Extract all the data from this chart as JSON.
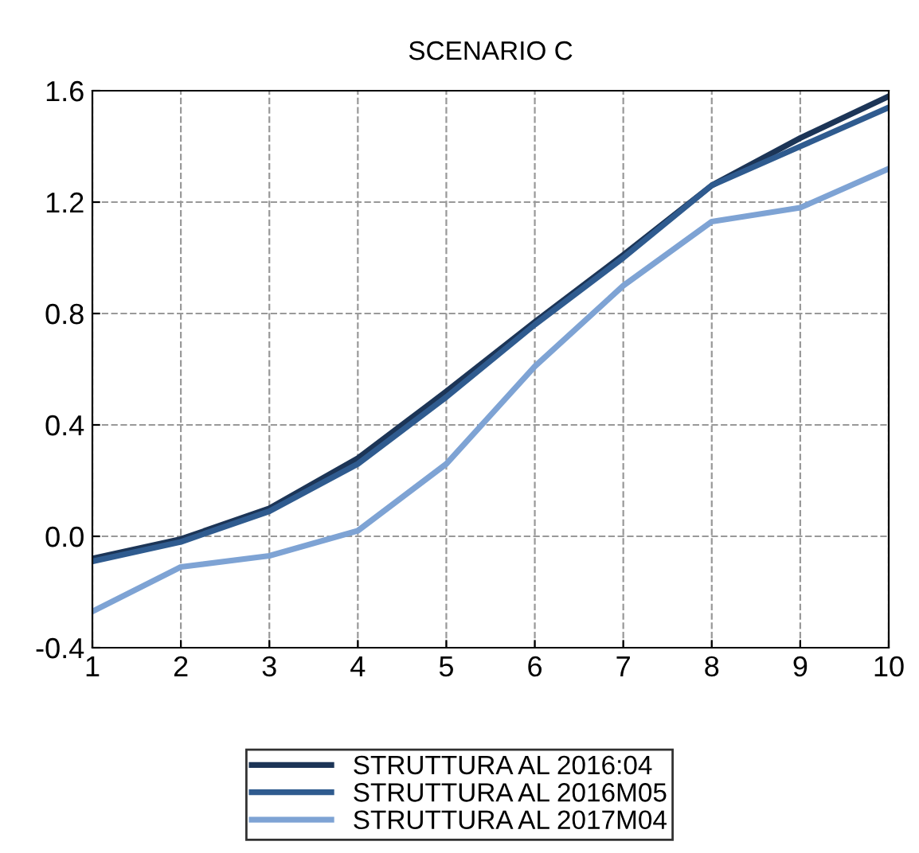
{
  "chart_data": {
    "type": "line",
    "title": "SCENARIO C",
    "x": [
      1,
      2,
      3,
      4,
      5,
      6,
      7,
      8,
      9,
      10
    ],
    "series": [
      {
        "name": "STRUTTURA AL 2016:04",
        "color": "#1c3557",
        "values": [
          -0.08,
          -0.01,
          0.1,
          0.28,
          0.52,
          0.77,
          1.01,
          1.26,
          1.43,
          1.58
        ]
      },
      {
        "name": "STRUTTURA AL 2016M05",
        "color": "#2f5b8f",
        "values": [
          -0.09,
          -0.02,
          0.09,
          0.26,
          0.5,
          0.76,
          1.0,
          1.26,
          1.4,
          1.54
        ]
      },
      {
        "name": "STRUTTURA AL 2017M04",
        "color": "#7ea3d4",
        "values": [
          -0.27,
          -0.11,
          -0.07,
          0.02,
          0.26,
          0.61,
          0.9,
          1.13,
          1.18,
          1.32
        ]
      }
    ],
    "xlim": [
      1,
      10
    ],
    "xticks": [
      1,
      2,
      3,
      4,
      5,
      6,
      7,
      8,
      9,
      10
    ],
    "ylim": [
      -0.4,
      1.6
    ],
    "yticks": [
      {
        "value": -0.4,
        "label": "-0.4"
      },
      {
        "value": 0.0,
        "label": "0.0"
      },
      {
        "value": 0.4,
        "label": "0.4"
      },
      {
        "value": 0.8,
        "label": "0.8"
      },
      {
        "value": 1.2,
        "label": "1.2"
      },
      {
        "value": 1.6,
        "label": "1.6"
      }
    ],
    "grid": true,
    "legend": "bottom",
    "marker": "none",
    "line_style": "solid"
  }
}
